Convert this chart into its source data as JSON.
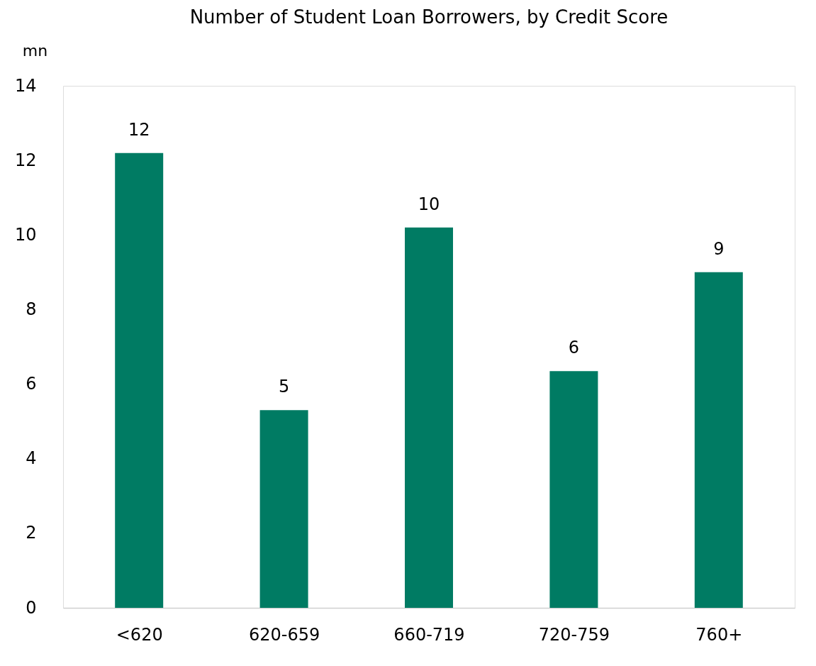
{
  "chart_data": {
    "type": "bar",
    "title": "Number of Student Loan Borrowers, by Credit Score",
    "ylabel": "mn",
    "categories": [
      "<620",
      "620-659",
      "660-719",
      "720-759",
      "760+"
    ],
    "values": [
      12.2,
      5.3,
      10.2,
      6.35,
      9.0
    ],
    "value_labels": [
      "12",
      "5",
      "10",
      "6",
      "9"
    ],
    "color": "#007b63",
    "ylim": [
      0,
      14
    ],
    "yticks": [
      0,
      2,
      4,
      6,
      8,
      10,
      12,
      14
    ],
    "grid": false
  }
}
